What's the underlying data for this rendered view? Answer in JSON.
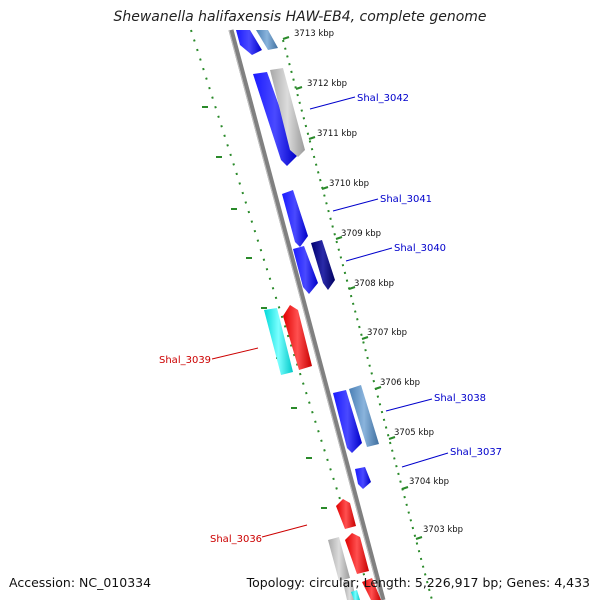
{
  "title": "Shewanella halifaxensis HAW-EB4, complete genome",
  "footer": {
    "accession": "Accession: NC_010334",
    "summary": "Topology: circular; Length: 5,226,917 bp; Genes: 4,433"
  },
  "scale": {
    "unit": "kbp",
    "ticks": [
      "3713 kbp",
      "3712 kbp",
      "3711 kbp",
      "3710 kbp",
      "3709 kbp",
      "3708 kbp",
      "3707 kbp",
      "3706 kbp",
      "3705 kbp",
      "3704 kbp",
      "3703 kbp"
    ]
  },
  "gene_labels": [
    {
      "text": "Shal_3042",
      "color": "#0000cc"
    },
    {
      "text": "Shal_3041",
      "color": "#0000cc"
    },
    {
      "text": "Shal_3040",
      "color": "#0000cc"
    },
    {
      "text": "Shal_3039",
      "color": "#cc0000"
    },
    {
      "text": "Shal_3038",
      "color": "#0000cc"
    },
    {
      "text": "Shal_3037",
      "color": "#0000cc"
    },
    {
      "text": "Shal_3036",
      "color": "#cc0000"
    }
  ],
  "colors": {
    "backbone": "#888888",
    "gc_ticks": "#2a8a2a",
    "blue": "#0000ee",
    "steelblue": "#5a8fc0",
    "navy": "#000088",
    "gray": "#b8b8b8",
    "cyan": "#00eeee",
    "red": "#ee0000"
  }
}
